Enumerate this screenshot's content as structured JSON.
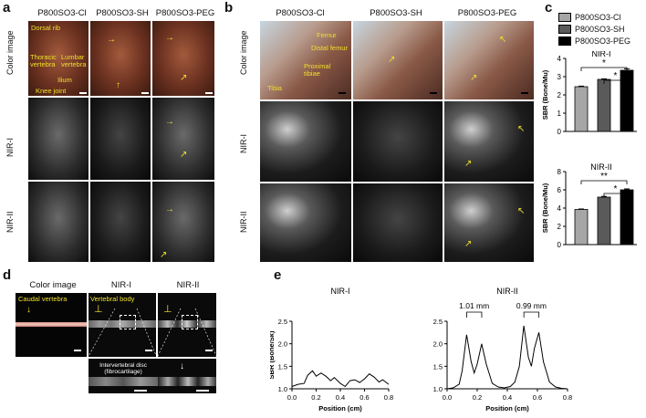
{
  "panels": {
    "a": "a",
    "b": "b",
    "c": "c",
    "d": "d",
    "e": "e"
  },
  "panel_a": {
    "columns": [
      "P800SO3-Cl",
      "P800SO3-SH",
      "P800SO3-PEG"
    ],
    "rows": [
      "Color image",
      "NIR-I",
      "NIR-II"
    ],
    "annotations": [
      "Dorsal rib",
      "Thoracic vertebra",
      "Lumbar vertebra",
      "Ilium",
      "Knee joint"
    ]
  },
  "panel_b": {
    "columns": [
      "P800SO3-Cl",
      "P800SO3-SH",
      "P800SO3-PEG"
    ],
    "rows": [
      "Color image",
      "NIR-I",
      "NIR-II"
    ],
    "annotations": [
      "Femur",
      "Distal femur",
      "Proximal tibiae",
      "Tibia"
    ]
  },
  "panel_c": {
    "legend": [
      {
        "name": "P800SO3-Cl",
        "color": "#a6a6a6"
      },
      {
        "name": "P800SO3-SH",
        "color": "#5a5a5a"
      },
      {
        "name": "P800SO3-PEG",
        "color": "#000000"
      }
    ],
    "ylabel": "SBR (Bone/Mu)"
  },
  "panel_d": {
    "titles": [
      "Color image",
      "NIR-I",
      "NIR-II"
    ],
    "annotations": [
      "Caudal vertebra",
      "Vertebral body",
      "Intervertebral disc",
      "(fibrocartilage)"
    ]
  },
  "panel_e": {
    "titles": [
      "NIR-I",
      "NIR-II"
    ],
    "peak_labels": [
      "1.01 mm",
      "0.99 mm"
    ]
  },
  "chart_data": [
    {
      "type": "bar",
      "title": "NIR-I",
      "ylabel": "SBR (Bone/Mu)",
      "categories": [
        "P800SO3-Cl",
        "P800SO3-SH",
        "P800SO3-PEG"
      ],
      "values": [
        2.45,
        2.85,
        3.35
      ],
      "errors": [
        0.03,
        0.03,
        0.08
      ],
      "ylim": [
        0,
        4
      ],
      "yticks": [
        "0",
        "1",
        "2",
        "3",
        "4"
      ],
      "colors": [
        "#a6a6a6",
        "#5a5a5a",
        "#000000"
      ],
      "significance": [
        "*",
        "*"
      ]
    },
    {
      "type": "bar",
      "title": "NIR-II",
      "ylabel": "SBR (Bone/Mu)",
      "categories": [
        "P800SO3-Cl",
        "P800SO3-SH",
        "P800SO3-PEG"
      ],
      "values": [
        3.85,
        5.2,
        6.0
      ],
      "errors": [
        0.05,
        0.08,
        0.1
      ],
      "ylim": [
        0,
        8
      ],
      "yticks": [
        "0",
        "2",
        "4",
        "6",
        "8"
      ],
      "colors": [
        "#a6a6a6",
        "#5a5a5a",
        "#000000"
      ],
      "significance": [
        "**",
        "*"
      ]
    },
    {
      "type": "line",
      "title": "NIR-I",
      "xlabel": "Position (cm)",
      "ylabel": "SBR (Bone/Sk)",
      "xlim": [
        0,
        0.8
      ],
      "ylim": [
        1.0,
        2.5
      ],
      "xticks": [
        "0.0",
        "0.2",
        "0.4",
        "0.6",
        "0.8"
      ],
      "yticks": [
        "1.0",
        "1.5",
        "2.0",
        "2.5"
      ],
      "x": [
        0.0,
        0.05,
        0.1,
        0.13,
        0.17,
        0.2,
        0.24,
        0.28,
        0.32,
        0.35,
        0.4,
        0.44,
        0.48,
        0.52,
        0.56,
        0.6,
        0.64,
        0.68,
        0.72,
        0.75,
        0.8
      ],
      "y": [
        1.05,
        1.1,
        1.12,
        1.3,
        1.4,
        1.28,
        1.35,
        1.28,
        1.18,
        1.25,
        1.12,
        1.05,
        1.18,
        1.2,
        1.14,
        1.22,
        1.33,
        1.26,
        1.15,
        1.2,
        1.1
      ]
    },
    {
      "type": "line",
      "title": "NIR-II",
      "xlabel": "Position (cm)",
      "ylabel": "",
      "xlim": [
        0,
        0.8
      ],
      "ylim": [
        1.0,
        2.5
      ],
      "xticks": [
        "0.0",
        "0.2",
        "0.4",
        "0.6",
        "0.8"
      ],
      "yticks": [
        "1.0",
        "1.5",
        "2.0",
        "2.5"
      ],
      "x": [
        0.0,
        0.04,
        0.08,
        0.1,
        0.13,
        0.16,
        0.18,
        0.2,
        0.23,
        0.26,
        0.3,
        0.34,
        0.38,
        0.42,
        0.45,
        0.48,
        0.51,
        0.54,
        0.56,
        0.58,
        0.61,
        0.64,
        0.68,
        0.72,
        0.76,
        0.8
      ],
      "y": [
        1.0,
        1.02,
        1.1,
        1.4,
        2.2,
        1.6,
        1.35,
        1.55,
        2.0,
        1.55,
        1.12,
        1.04,
        1.02,
        1.05,
        1.15,
        1.5,
        2.4,
        1.7,
        1.5,
        1.9,
        2.25,
        1.6,
        1.15,
        1.04,
        1.01,
        1.0
      ]
    }
  ]
}
